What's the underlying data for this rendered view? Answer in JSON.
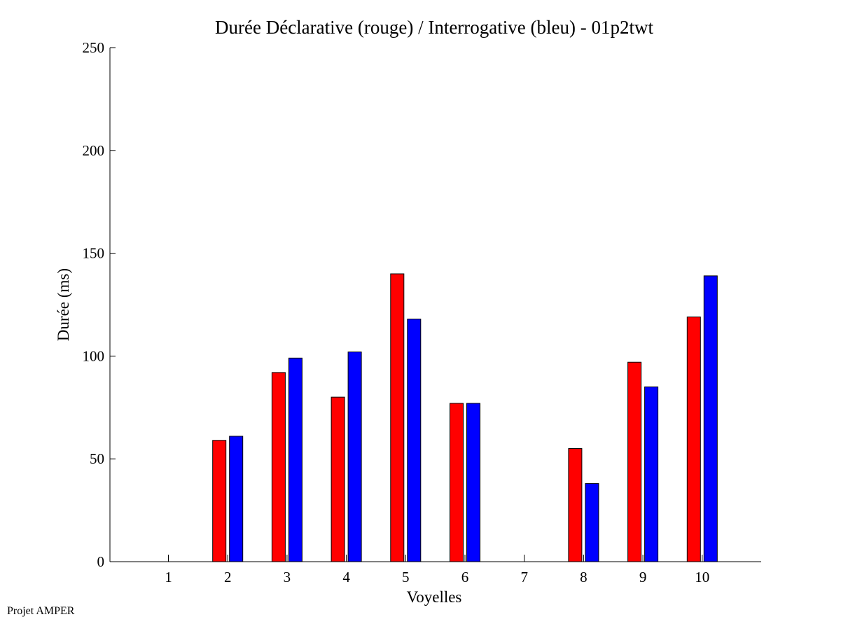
{
  "chart_data": {
    "type": "bar",
    "title": "Durée Déclarative (rouge) / Interrogative (bleu) - 01p2twt",
    "xlabel": "Voyelles",
    "ylabel": "Durée (ms)",
    "categories": [
      "1",
      "2",
      "3",
      "4",
      "5",
      "6",
      "7",
      "8",
      "9",
      "10"
    ],
    "ylim": [
      0,
      250
    ],
    "yticks": [
      "0",
      "50",
      "100",
      "150",
      "200",
      "250"
    ],
    "grid": false,
    "series": [
      {
        "name": "Déclarative (rouge)",
        "color": "#ff0000",
        "values": [
          null,
          59,
          92,
          80,
          140,
          77,
          null,
          55,
          97,
          119
        ]
      },
      {
        "name": "Interrogative (bleu)",
        "color": "#0000ff",
        "values": [
          null,
          61,
          99,
          102,
          118,
          77,
          null,
          38,
          85,
          139
        ]
      }
    ]
  },
  "footer": {
    "label": "Projet AMPER"
  }
}
